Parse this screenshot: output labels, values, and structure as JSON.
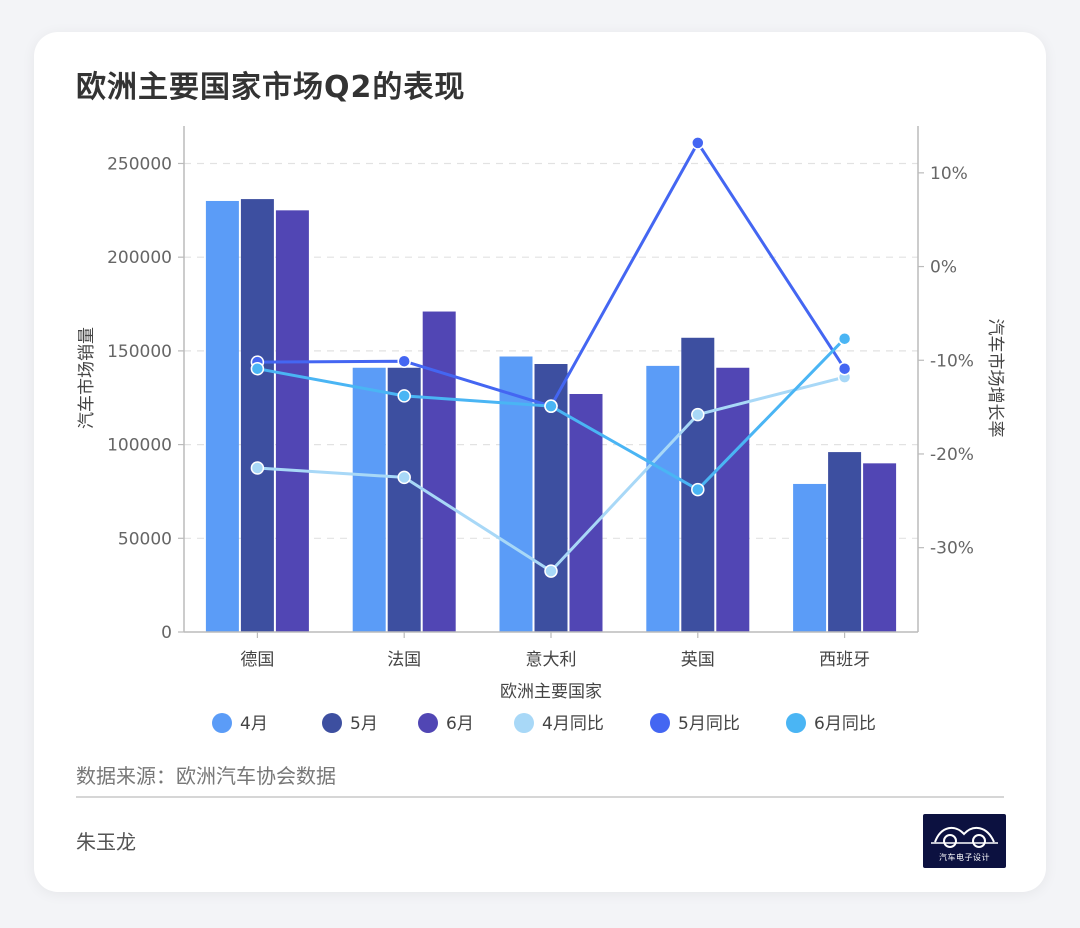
{
  "title": "欧洲主要国家市场Q2的表现",
  "source": "数据来源：欧洲汽车协会数据",
  "author": "朱玉龙",
  "logo_text": "汽车电子设计",
  "chart_data": {
    "type": "bar",
    "categories": [
      "德国",
      "法国",
      "意大利",
      "英国",
      "西班牙"
    ],
    "xlabel": "欧洲主要国家",
    "ylabel": "汽车市场销量",
    "y2label": "汽车市场增长率",
    "ylim": [
      0,
      270000
    ],
    "y_ticks": [
      "0",
      "50000",
      "100000",
      "150000",
      "200000",
      "250000"
    ],
    "y_tick_values": [
      0,
      50000,
      100000,
      150000,
      200000,
      250000
    ],
    "y2lim": [
      -39,
      15
    ],
    "y2_ticks": [
      "-30%",
      "-20%",
      "-10%",
      "0%",
      "10%"
    ],
    "y2_tick_values": [
      -30,
      -20,
      -10,
      0,
      10
    ],
    "grid": "horizontal dashed",
    "legend_position": "bottom",
    "bar_series": [
      {
        "name": "4月",
        "color": "#5b9cf7",
        "values": [
          230000,
          141000,
          147000,
          142000,
          79000
        ]
      },
      {
        "name": "5月",
        "color": "#3d4fa0",
        "values": [
          231000,
          141000,
          143000,
          157000,
          96000
        ]
      },
      {
        "name": "6月",
        "color": "#5146b4",
        "values": [
          225000,
          171000,
          127000,
          141000,
          90000
        ]
      }
    ],
    "line_series": [
      {
        "name": "4月同比",
        "color": "#a8d8f7",
        "values": [
          -21.5,
          -22.5,
          -32.5,
          -15.8,
          -11.8
        ]
      },
      {
        "name": "5月同比",
        "color": "#4466f2",
        "values": [
          -10.2,
          -10.1,
          -14.9,
          13.2,
          -10.9
        ]
      },
      {
        "name": "6月同比",
        "color": "#4ab5f4",
        "values": [
          -10.9,
          -13.8,
          -14.9,
          -23.8,
          -7.7
        ]
      }
    ]
  }
}
